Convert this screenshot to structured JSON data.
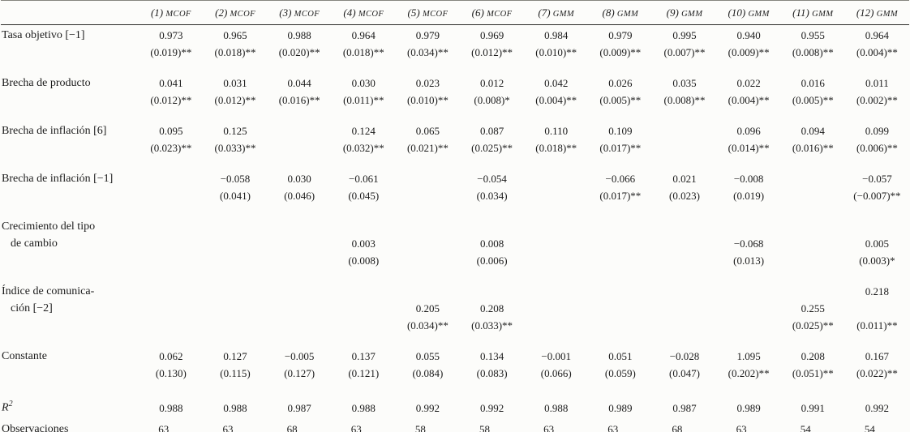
{
  "table": {
    "columns": [
      {
        "num": "(1)",
        "method": "MCOF"
      },
      {
        "num": "(2)",
        "method": "MCOF"
      },
      {
        "num": "(3)",
        "method": "MCOF"
      },
      {
        "num": "(4)",
        "method": "MCOF"
      },
      {
        "num": "(5)",
        "method": "MCOF"
      },
      {
        "num": "(6)",
        "method": "MCOF"
      },
      {
        "num": "(7)",
        "method": "GMM"
      },
      {
        "num": "(8)",
        "method": "GMM"
      },
      {
        "num": "(9)",
        "method": "GMM"
      },
      {
        "num": "(10)",
        "method": "GMM"
      },
      {
        "num": "(11)",
        "method": "GMM"
      },
      {
        "num": "(12)",
        "method": "GMM"
      }
    ],
    "rows": [
      {
        "label_lines": [
          "Tasa objetivo [−1]"
        ],
        "value_lines": [
          [
            "0.973",
            "0.965",
            "0.988",
            "0.964",
            "0.979",
            "0.969",
            "0.984",
            "0.979",
            "0.995",
            "0.940",
            "0.955",
            "0.964"
          ],
          [
            "(0.019)**",
            "(0.018)**",
            "(0.020)**",
            "(0.018)**",
            "(0.034)**",
            "(0.012)**",
            "(0.010)**",
            "(0.009)**",
            "(0.007)**",
            "(0.009)**",
            "(0.008)**",
            "(0.004)**"
          ]
        ]
      },
      {
        "label_lines": [
          "Brecha de producto"
        ],
        "value_lines": [
          [
            "0.041",
            "0.031",
            "0.044",
            "0.030",
            "0.023",
            "0.012",
            "0.042",
            "0.026",
            "0.035",
            "0.022",
            "0.016",
            "0.011"
          ],
          [
            "(0.012)**",
            "(0.012)**",
            "(0.016)**",
            "(0.011)**",
            "(0.010)**",
            "(0.008)*",
            "(0.004)**",
            "(0.005)**",
            "(0.008)**",
            "(0.004)**",
            "(0.005)**",
            "(0.002)**"
          ]
        ]
      },
      {
        "label_lines": [
          "Brecha de inflación [6]"
        ],
        "value_lines": [
          [
            "0.095",
            "0.125",
            "",
            "0.124",
            "0.065",
            "0.087",
            "0.110",
            "0.109",
            "",
            "0.096",
            "0.094",
            "0.099"
          ],
          [
            "(0.023)**",
            "(0.033)**",
            "",
            "(0.032)**",
            "(0.021)**",
            "(0.025)**",
            "(0.018)**",
            "(0.017)**",
            "",
            "(0.014)**",
            "(0.016)**",
            "(0.006)**"
          ]
        ]
      },
      {
        "label_lines": [
          "Brecha de inflación [−1]"
        ],
        "value_lines": [
          [
            "",
            "−0.058",
            "0.030",
            "−0.061",
            "",
            "−0.054",
            "",
            "−0.066",
            "0.021",
            "−0.008",
            "",
            "−0.057"
          ],
          [
            "",
            "(0.041)",
            "(0.046)",
            "(0.045)",
            "",
            "(0.034)",
            "",
            "(0.017)**",
            "(0.023)",
            "(0.019)",
            "",
            "(−0.007)**"
          ]
        ]
      },
      {
        "label_lines": [
          "Crecimiento del tipo",
          "de cambio"
        ],
        "value_lines": [
          [
            "",
            "",
            "",
            "",
            "",
            "",
            "",
            "",
            "",
            "",
            "",
            ""
          ],
          [
            "",
            "",
            "",
            "0.003",
            "",
            "0.008",
            "",
            "",
            "",
            "−0.068",
            "",
            "0.005"
          ],
          [
            "",
            "",
            "",
            "(0.008)",
            "",
            "(0.006)",
            "",
            "",
            "",
            "(0.013)",
            "",
            "(0.003)*"
          ]
        ]
      },
      {
        "label_lines": [
          "Índice de comunica-",
          "ción [−2]"
        ],
        "value_lines": [
          [
            "",
            "",
            "",
            "",
            "",
            "",
            "",
            "",
            "",
            "",
            "",
            "0.218"
          ],
          [
            "",
            "",
            "",
            "",
            "0.205",
            "0.208",
            "",
            "",
            "",
            "",
            "0.255",
            ""
          ],
          [
            "",
            "",
            "",
            "",
            "(0.034)**",
            "(0.033)**",
            "",
            "",
            "",
            "",
            "(0.025)**",
            "(0.011)**"
          ]
        ]
      },
      {
        "label_lines": [
          "Constante"
        ],
        "value_lines": [
          [
            "0.062",
            "0.127",
            "−0.005",
            "0.137",
            "0.055",
            "0.134",
            "−0.001",
            "0.051",
            "−0.028",
            "1.095",
            "0.208",
            "0.167"
          ],
          [
            "(0.130)",
            "(0.115)",
            "(0.127)",
            "(0.121)",
            "(0.084)",
            "(0.083)",
            "(0.066)",
            "(0.059)",
            "(0.047)",
            "(0.202)**",
            "(0.051)**",
            "(0.022)**"
          ]
        ]
      },
      {
        "label_lines": [
          "R"
        ],
        "label_sup": "2",
        "italic_label": true,
        "value_lines": [
          [
            "0.988",
            "0.988",
            "0.987",
            "0.988",
            "0.992",
            "0.992",
            "0.988",
            "0.989",
            "0.987",
            "0.989",
            "0.991",
            "0.992"
          ]
        ]
      },
      {
        "label_lines": [
          "Observaciones"
        ],
        "value_lines": [
          [
            "63",
            "63",
            "68",
            "63",
            "58",
            "58",
            "63",
            "63",
            "68",
            "63",
            "54",
            "54"
          ]
        ]
      }
    ]
  }
}
